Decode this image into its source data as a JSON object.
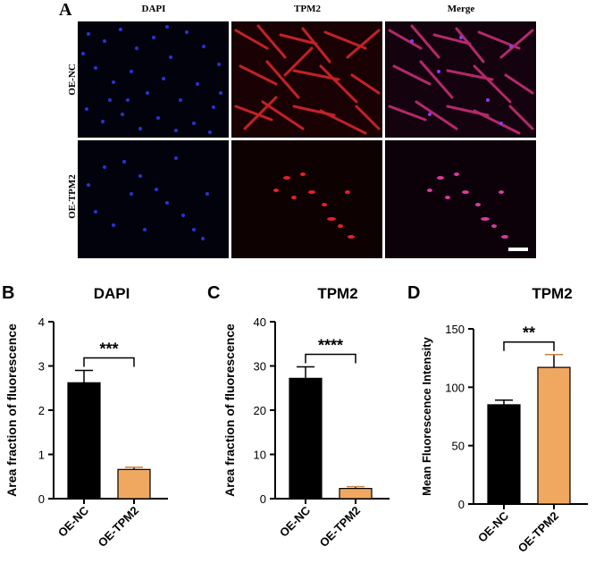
{
  "panel_a": {
    "letter": "A",
    "columns": [
      "DAPI",
      "TPM2",
      "Merge"
    ],
    "rows": [
      "OE-NC",
      "OE-TPM2"
    ]
  },
  "chart_data": [
    {
      "panel": "B",
      "type": "bar",
      "title": "DAPI",
      "ylabel": "Area fraction of fluorescence",
      "categories": [
        "OE-NC",
        "OE-TPM2"
      ],
      "values": [
        2.62,
        0.66
      ],
      "errors": [
        0.28,
        0.05
      ],
      "ylim": [
        0,
        4
      ],
      "yticks": [
        0,
        1,
        2,
        3,
        4
      ],
      "colors": [
        "#000000",
        "#f0a860"
      ],
      "significance": "***"
    },
    {
      "panel": "C",
      "type": "bar",
      "title": "TPM2",
      "ylabel": "Area fraction of fluorescence",
      "categories": [
        "OE-NC",
        "OE-TPM2"
      ],
      "values": [
        27.2,
        2.3
      ],
      "errors": [
        2.6,
        0.4
      ],
      "ylim": [
        0,
        40
      ],
      "yticks": [
        0,
        10,
        20,
        30,
        40
      ],
      "colors": [
        "#000000",
        "#f0a860"
      ],
      "significance": "****"
    },
    {
      "panel": "D",
      "type": "bar",
      "title": "TPM2",
      "ylabel": "Mean Fluorescence Intensity",
      "categories": [
        "OE-NC",
        "OE-TPM2"
      ],
      "values": [
        85,
        117
      ],
      "errors": [
        4,
        11
      ],
      "ylim": [
        0,
        150
      ],
      "yticks": [
        0,
        50,
        100,
        150
      ],
      "colors": [
        "#000000",
        "#f0a860"
      ],
      "significance": "**"
    }
  ]
}
